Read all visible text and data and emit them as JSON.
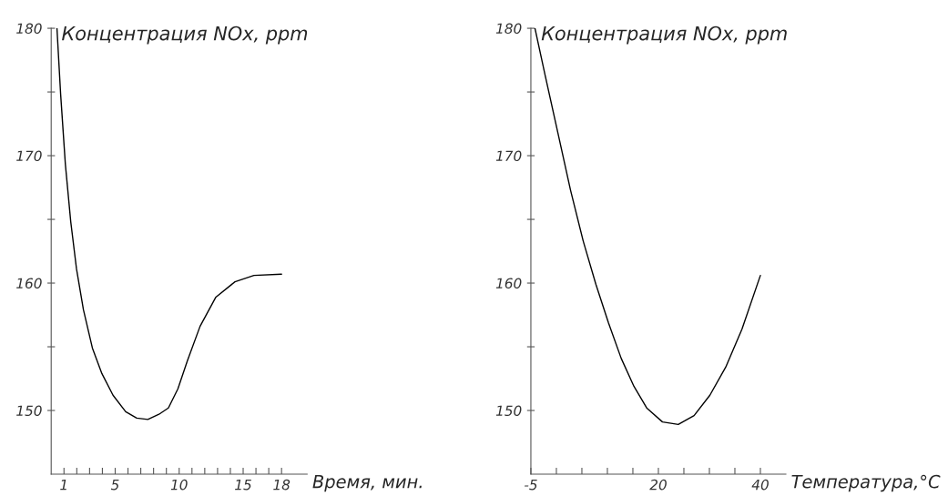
{
  "chart_data": [
    {
      "type": "line",
      "ylabel": "Концентрация NOx, ppm",
      "xlabel": "Время, мин.",
      "xlim": [
        0,
        20
      ],
      "ylim": [
        145,
        180
      ],
      "xticks": [
        {
          "value": 1,
          "label": "1"
        },
        {
          "value": 2,
          "label": null
        },
        {
          "value": 3,
          "label": null
        },
        {
          "value": 4,
          "label": null
        },
        {
          "value": 5,
          "label": "5"
        },
        {
          "value": 6,
          "label": null
        },
        {
          "value": 7,
          "label": null
        },
        {
          "value": 8,
          "label": null
        },
        {
          "value": 9,
          "label": null
        },
        {
          "value": 10,
          "label": "10"
        },
        {
          "value": 11,
          "label": null
        },
        {
          "value": 12,
          "label": null
        },
        {
          "value": 13,
          "label": null
        },
        {
          "value": 14,
          "label": null
        },
        {
          "value": 15,
          "label": "15"
        },
        {
          "value": 16,
          "label": null
        },
        {
          "value": 17,
          "label": null
        },
        {
          "value": 18,
          "label": "18"
        }
      ],
      "yticks": [
        150,
        {
          "value": 155,
          "label": null
        },
        160,
        {
          "value": 165,
          "label": null
        },
        170,
        {
          "value": 175,
          "label": null
        },
        180
      ],
      "x": [
        0.45,
        0.74,
        1.11,
        1.53,
        1.98,
        2.52,
        3.22,
        3.96,
        4.83,
        5.82,
        6.68,
        7.55,
        8.42,
        9.16,
        9.9,
        10.64,
        11.63,
        12.87,
        14.36,
        15.84,
        18
      ],
      "series": [
        {
          "color": "#000000",
          "values": [
            180,
            174.8,
            169.3,
            164.8,
            161.1,
            157.9,
            154.9,
            152.9,
            151.2,
            149.9,
            149.4,
            149.3,
            149.7,
            150.2,
            151.7,
            153.9,
            156.6,
            158.9,
            160.1,
            160.6,
            160.7
          ]
        }
      ],
      "grid": false,
      "marker": "none",
      "line_style": "solid"
    },
    {
      "type": "line",
      "ylabel": "Концентрация NOx, ppm",
      "xlabel": "Температура,°C",
      "xlim": [
        -5,
        45
      ],
      "ylim": [
        145,
        180
      ],
      "xticks": [
        -5,
        {
          "value": 0,
          "label": null
        },
        {
          "value": 5,
          "label": null
        },
        {
          "value": 10,
          "label": null
        },
        {
          "value": 15,
          "label": null
        },
        20,
        {
          "value": 25,
          "label": null
        },
        {
          "value": 30,
          "label": null
        },
        {
          "value": 35,
          "label": null
        },
        40
      ],
      "yticks": [
        150,
        {
          "value": 155,
          "label": null
        },
        160,
        {
          "value": 165,
          "label": null
        },
        170,
        {
          "value": 175,
          "label": null
        },
        180
      ],
      "x": [
        -4.2,
        -2.2,
        0.29,
        2.77,
        5.26,
        7.75,
        10.2,
        12.7,
        15.2,
        17.7,
        20.8,
        23.9,
        27.0,
        30.1,
        33.2,
        36.4,
        40
      ],
      "series": [
        {
          "color": "#000000",
          "values": [
            180,
            176.3,
            171.8,
            167.3,
            163.3,
            159.9,
            156.9,
            154.1,
            151.9,
            150.2,
            149.1,
            148.9,
            149.6,
            151.2,
            153.4,
            156.4,
            160.6
          ]
        }
      ],
      "grid": false,
      "marker": "none",
      "line_style": "solid"
    }
  ]
}
